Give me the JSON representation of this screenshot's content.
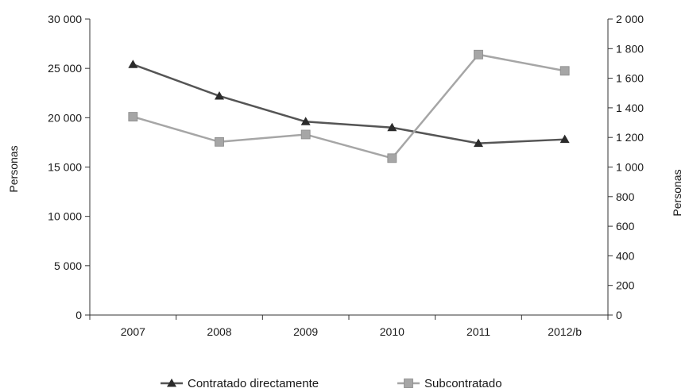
{
  "chart_data": {
    "type": "line",
    "categories": [
      "2007",
      "2008",
      "2009",
      "2010",
      "2011",
      "2012/b"
    ],
    "series": [
      {
        "name": "Contratado directamente",
        "axis": "left",
        "marker": "triangle",
        "color": "#555555",
        "values": [
          25400,
          22200,
          19600,
          19000,
          17400,
          17800
        ]
      },
      {
        "name": "Subcontratado",
        "axis": "right",
        "marker": "square",
        "color": "#a6a6a6",
        "values": [
          1340,
          1170,
          1220,
          1060,
          1760,
          1650
        ]
      }
    ],
    "y_left": {
      "label": "Personas",
      "ylim": [
        0,
        30000
      ],
      "ticks": [
        "0",
        "5 000",
        "10 000",
        "15 000",
        "20 000",
        "25 000",
        "30 000"
      ]
    },
    "y_right": {
      "label": "Personas",
      "ylim": [
        0,
        2000
      ],
      "ticks": [
        "0",
        "200",
        "400",
        "600",
        "800",
        "1 000",
        "1 200",
        "1 400",
        "1 600",
        "1 800",
        "2 000"
      ]
    },
    "grid": false,
    "legend_position": "bottom"
  }
}
